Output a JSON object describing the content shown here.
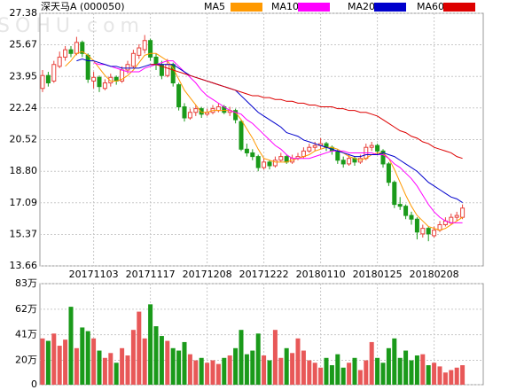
{
  "chart_data": {
    "type": "candlestick",
    "title": "深天马A (000050)",
    "watermark": "SOHU.com",
    "categories": [
      null,
      null,
      null,
      null,
      null,
      null,
      null,
      null,
      null,
      "20171103",
      null,
      null,
      null,
      null,
      null,
      null,
      null,
      null,
      null,
      "20171117",
      null,
      null,
      null,
      null,
      null,
      null,
      null,
      null,
      null,
      "20171208",
      null,
      null,
      null,
      null,
      null,
      null,
      null,
      null,
      null,
      "20171222",
      null,
      null,
      null,
      null,
      null,
      null,
      null,
      null,
      null,
      "20180110",
      null,
      null,
      null,
      null,
      null,
      null,
      null,
      null,
      null,
      "20180125",
      null,
      null,
      null,
      null,
      null,
      null,
      null,
      null,
      null,
      "20180208",
      null,
      null,
      null,
      null,
      null
    ],
    "candles": [
      [
        23.3,
        24.3,
        23.1,
        24.0
      ],
      [
        24.0,
        24.2,
        23.4,
        23.6
      ],
      [
        23.7,
        24.8,
        23.6,
        24.6
      ],
      [
        24.5,
        25.3,
        24.4,
        25.0
      ],
      [
        25.0,
        25.6,
        24.8,
        25.4
      ],
      [
        25.4,
        25.6,
        25.0,
        25.2
      ],
      [
        25.2,
        26.1,
        25.1,
        25.8
      ],
      [
        25.8,
        25.9,
        25.0,
        25.2
      ],
      [
        25.1,
        25.2,
        23.6,
        23.8
      ],
      [
        23.7,
        24.2,
        23.3,
        23.9
      ],
      [
        23.9,
        24.0,
        23.1,
        23.4
      ],
      [
        23.3,
        23.8,
        23.2,
        23.6
      ],
      [
        23.6,
        24.1,
        23.4,
        23.9
      ],
      [
        23.9,
        24.0,
        23.5,
        23.7
      ],
      [
        23.7,
        24.5,
        23.6,
        24.3
      ],
      [
        24.3,
        24.8,
        24.1,
        24.6
      ],
      [
        24.5,
        25.4,
        24.4,
        25.2
      ],
      [
        25.1,
        25.7,
        24.9,
        25.5
      ],
      [
        25.4,
        26.2,
        25.2,
        25.9
      ],
      [
        25.9,
        26.0,
        24.8,
        25.0
      ],
      [
        25.0,
        25.2,
        24.3,
        24.6
      ],
      [
        24.6,
        24.8,
        23.8,
        24.0
      ],
      [
        24.0,
        24.9,
        23.9,
        24.6
      ],
      [
        24.6,
        24.7,
        23.4,
        23.6
      ],
      [
        23.5,
        23.6,
        22.1,
        22.3
      ],
      [
        22.3,
        22.5,
        21.5,
        21.7
      ],
      [
        21.7,
        22.2,
        21.6,
        22.0
      ],
      [
        22.0,
        22.4,
        21.8,
        22.2
      ],
      [
        22.2,
        22.3,
        21.7,
        21.9
      ],
      [
        21.9,
        22.2,
        21.8,
        22.0
      ],
      [
        22.0,
        22.4,
        21.9,
        22.2
      ],
      [
        22.1,
        22.5,
        22.0,
        22.3
      ],
      [
        22.3,
        22.4,
        21.9,
        22.0
      ],
      [
        22.0,
        22.3,
        21.8,
        22.1
      ],
      [
        22.1,
        22.2,
        21.4,
        21.6
      ],
      [
        21.5,
        21.6,
        19.9,
        20.0
      ],
      [
        20.0,
        20.3,
        19.6,
        19.8
      ],
      [
        19.8,
        20.0,
        19.4,
        19.6
      ],
      [
        19.6,
        19.7,
        18.8,
        19.0
      ],
      [
        19.0,
        19.5,
        18.9,
        19.3
      ],
      [
        19.3,
        19.4,
        18.9,
        19.1
      ],
      [
        19.1,
        19.6,
        19.0,
        19.4
      ],
      [
        19.4,
        19.8,
        19.3,
        19.6
      ],
      [
        19.6,
        19.7,
        19.2,
        19.3
      ],
      [
        19.3,
        19.7,
        19.2,
        19.5
      ],
      [
        19.5,
        19.8,
        19.4,
        19.6
      ],
      [
        19.6,
        20.1,
        19.5,
        19.9
      ],
      [
        19.9,
        20.3,
        19.8,
        20.1
      ],
      [
        20.1,
        20.4,
        19.9,
        20.2
      ],
      [
        20.2,
        20.6,
        20.0,
        20.3
      ],
      [
        20.3,
        20.4,
        19.9,
        20.1
      ],
      [
        20.1,
        20.2,
        19.7,
        19.9
      ],
      [
        19.9,
        20.0,
        19.2,
        19.4
      ],
      [
        19.4,
        19.6,
        19.0,
        19.2
      ],
      [
        19.2,
        19.7,
        19.1,
        19.5
      ],
      [
        19.5,
        19.6,
        19.1,
        19.3
      ],
      [
        19.3,
        19.7,
        19.2,
        19.5
      ],
      [
        19.5,
        20.3,
        19.4,
        20.1
      ],
      [
        20.1,
        20.4,
        19.9,
        20.2
      ],
      [
        20.2,
        20.3,
        19.7,
        19.9
      ],
      [
        19.9,
        20.0,
        19.0,
        19.2
      ],
      [
        19.2,
        19.3,
        18.0,
        18.2
      ],
      [
        18.2,
        18.3,
        16.8,
        17.0
      ],
      [
        17.0,
        17.4,
        16.7,
        16.9
      ],
      [
        16.9,
        17.0,
        16.2,
        16.4
      ],
      [
        16.4,
        16.6,
        15.9,
        16.2
      ],
      [
        16.2,
        16.3,
        15.1,
        15.5
      ],
      [
        15.4,
        15.9,
        15.2,
        15.7
      ],
      [
        15.7,
        15.8,
        15.0,
        15.4
      ],
      [
        15.3,
        15.8,
        15.2,
        15.6
      ],
      [
        15.6,
        16.1,
        15.5,
        15.9
      ],
      [
        15.9,
        16.3,
        15.8,
        16.1
      ],
      [
        16.0,
        16.5,
        15.9,
        16.3
      ],
      [
        16.3,
        16.6,
        16.1,
        16.4
      ],
      [
        16.3,
        17.0,
        16.2,
        16.8
      ]
    ],
    "up_color": "#e8413b",
    "down_color": "#1a9a1a",
    "ylim": [
      13.66,
      27.38
    ],
    "yticks": [
      {
        "value": 13.66,
        "label": "13.66"
      },
      15.37,
      17.09,
      {
        "value": 18.8,
        "label": "18.80"
      },
      20.52,
      22.24,
      23.95,
      25.67,
      27.38
    ],
    "grid": true,
    "series": [
      {
        "name": "MA5",
        "color": "#ff9900",
        "values": [
          null,
          null,
          null,
          null,
          24.5,
          24.8,
          25.2,
          25.3,
          25.1,
          24.8,
          24.4,
          24.0,
          23.7,
          23.7,
          23.8,
          24.0,
          24.3,
          24.7,
          25.1,
          25.2,
          25.2,
          25.0,
          24.8,
          24.4,
          23.8,
          23.2,
          22.8,
          22.4,
          22.0,
          22.0,
          22.1,
          22.1,
          22.1,
          22.1,
          22.0,
          21.6,
          21.1,
          20.6,
          20.0,
          19.5,
          19.4,
          19.3,
          19.3,
          19.3,
          19.4,
          19.5,
          19.6,
          19.7,
          19.9,
          20.0,
          20.1,
          20.1,
          20.0,
          19.8,
          19.6,
          19.5,
          19.4,
          19.5,
          19.7,
          19.8,
          19.8,
          19.5,
          18.9,
          18.2,
          17.5,
          16.9,
          16.4,
          16.1,
          15.8,
          15.7,
          15.6,
          15.7,
          15.9,
          16.1,
          16.3
        ]
      },
      {
        "name": "MA10",
        "color": "#ff00ff",
        "values": [
          null,
          null,
          null,
          null,
          null,
          null,
          null,
          null,
          null,
          24.7,
          24.6,
          24.6,
          24.5,
          24.4,
          24.3,
          24.2,
          24.2,
          24.2,
          24.4,
          24.5,
          24.6,
          24.7,
          24.8,
          24.8,
          24.5,
          24.2,
          23.9,
          23.6,
          23.2,
          22.9,
          22.7,
          22.5,
          22.3,
          22.1,
          22.0,
          21.9,
          21.6,
          21.4,
          21.1,
          20.8,
          20.5,
          20.2,
          20.0,
          19.7,
          19.5,
          19.5,
          19.5,
          19.5,
          19.6,
          19.7,
          19.8,
          19.9,
          19.9,
          19.9,
          19.8,
          19.8,
          19.8,
          19.8,
          19.8,
          19.7,
          19.7,
          19.5,
          19.2,
          19.0,
          18.7,
          18.4,
          18.0,
          17.5,
          17.0,
          16.6,
          16.3,
          16.1,
          16.0,
          16.0,
          16.0
        ]
      },
      {
        "name": "MA20",
        "color": "#0000cc",
        "values": [
          null,
          null,
          null,
          null,
          null,
          null,
          24.8,
          24.9,
          24.8,
          24.8,
          24.7,
          24.6,
          24.5,
          24.5,
          24.4,
          24.4,
          24.4,
          24.4,
          24.5,
          24.6,
          24.6,
          24.6,
          24.6,
          24.6,
          24.4,
          24.2,
          24.0,
          23.9,
          23.8,
          23.7,
          23.6,
          23.5,
          23.4,
          23.3,
          23.2,
          22.9,
          22.6,
          22.3,
          22.0,
          21.8,
          21.6,
          21.4,
          21.2,
          20.9,
          20.8,
          20.7,
          20.5,
          20.4,
          20.3,
          20.2,
          20.1,
          20.0,
          19.9,
          19.8,
          19.7,
          19.6,
          19.6,
          19.7,
          19.7,
          19.7,
          19.8,
          19.7,
          19.6,
          19.4,
          19.2,
          19.0,
          18.8,
          18.5,
          18.2,
          18.0,
          17.8,
          17.6,
          17.4,
          17.3,
          17.1
        ]
      },
      {
        "name": "MA60",
        "color": "#dd0000",
        "values": [
          null,
          null,
          null,
          null,
          null,
          null,
          null,
          null,
          null,
          null,
          null,
          null,
          null,
          null,
          null,
          null,
          null,
          null,
          null,
          24.6,
          24.6,
          24.5,
          24.4,
          24.3,
          24.2,
          24.1,
          24.0,
          23.9,
          23.8,
          23.7,
          23.6,
          23.5,
          23.4,
          23.3,
          23.2,
          23.1,
          23.0,
          22.9,
          22.9,
          22.8,
          22.8,
          22.7,
          22.7,
          22.6,
          22.6,
          22.5,
          22.5,
          22.4,
          22.4,
          22.3,
          22.3,
          22.3,
          22.2,
          22.2,
          22.1,
          22.1,
          22.0,
          22.0,
          21.9,
          21.8,
          21.6,
          21.4,
          21.2,
          21.0,
          20.9,
          20.7,
          20.6,
          20.4,
          20.3,
          20.1,
          20.0,
          19.9,
          19.8,
          19.6,
          19.5
        ]
      }
    ],
    "volume": {
      "values": [
        38,
        36,
        42,
        32,
        37,
        64,
        30,
        47,
        44,
        38,
        28,
        22,
        26,
        18,
        30,
        24,
        45,
        60,
        38,
        66,
        48,
        40,
        36,
        30,
        28,
        35,
        25,
        20,
        22,
        18,
        20,
        17,
        22,
        24,
        30,
        45,
        25,
        28,
        42,
        24,
        20,
        45,
        22,
        30,
        26,
        38,
        28,
        20,
        18,
        14,
        22,
        16,
        25,
        14,
        18,
        22,
        12,
        20,
        35,
        22,
        18,
        30,
        38,
        22,
        28,
        20,
        24,
        25,
        16,
        18,
        15,
        10,
        12,
        14,
        16
      ],
      "ylim": [
        0,
        83
      ],
      "yticks": [
        0,
        {
          "value": 20,
          "label": "20万"
        },
        {
          "value": 41,
          "label": "41万"
        },
        {
          "value": 62,
          "label": "62万"
        },
        {
          "value": 83,
          "label": "83万"
        }
      ]
    }
  }
}
